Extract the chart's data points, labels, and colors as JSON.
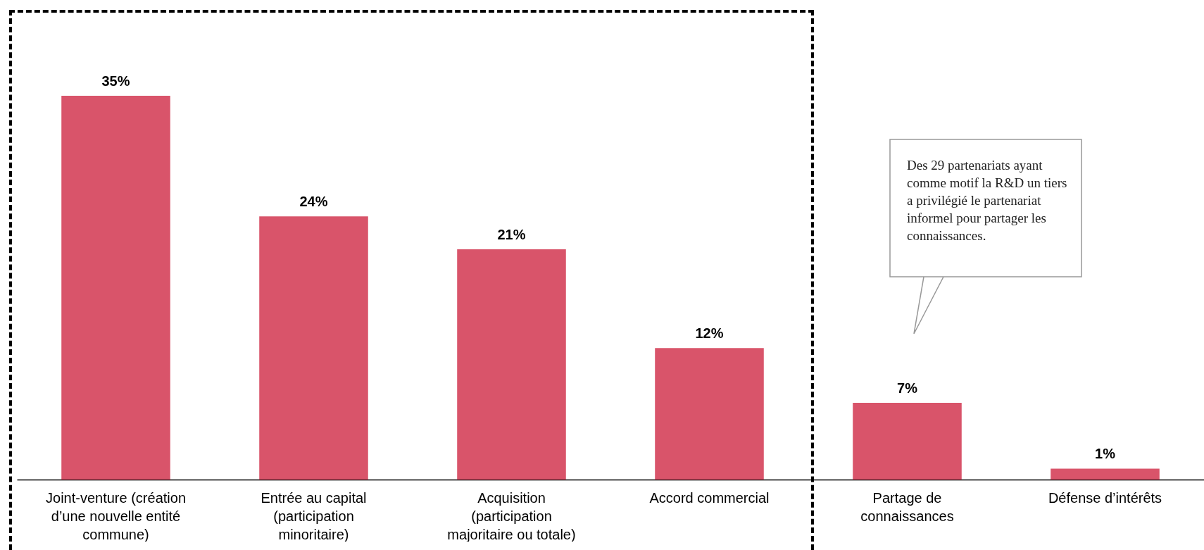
{
  "chart_data": {
    "type": "bar",
    "categories": [
      "Joint-venture (création d’une nouvelle entité commune)",
      "Entrée au capital (participation minoritaire)",
      "Acquisition (participation majoritaire ou totale)",
      "Accord commercial",
      "Partage de connaissances",
      "Défense d’intérêts"
    ],
    "values": [
      35,
      24,
      21,
      12,
      7,
      1
    ],
    "value_labels": [
      "35%",
      "24%",
      "21%",
      "12%",
      "7%",
      "1%"
    ],
    "color": "#d9546a",
    "annotations": [
      "Des 29 partenariats ayant comme motif la R&D un tiers a privilégié le partenariat informel pour partager les connaissances."
    ]
  }
}
